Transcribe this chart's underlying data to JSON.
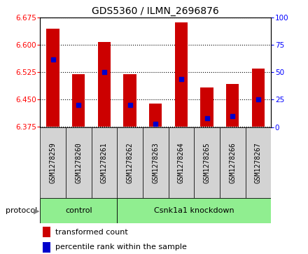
{
  "title": "GDS5360 / ILMN_2696876",
  "samples": [
    "GSM1278259",
    "GSM1278260",
    "GSM1278261",
    "GSM1278262",
    "GSM1278263",
    "GSM1278264",
    "GSM1278265",
    "GSM1278266",
    "GSM1278267"
  ],
  "transformed_counts": [
    6.645,
    6.52,
    6.608,
    6.52,
    6.44,
    6.663,
    6.483,
    6.493,
    6.535
  ],
  "percentile_ranks": [
    62,
    20,
    50,
    20,
    3,
    44,
    8,
    10,
    25
  ],
  "ylim_left": [
    6.375,
    6.675
  ],
  "ylim_right": [
    0,
    100
  ],
  "yticks_left": [
    6.375,
    6.45,
    6.525,
    6.6,
    6.675
  ],
  "yticks_right": [
    0,
    25,
    50,
    75,
    100
  ],
  "bar_color": "#cc0000",
  "blue_color": "#0000cc",
  "bar_width": 0.5,
  "group_ranges": [
    [
      0,
      3
    ],
    [
      3,
      9
    ]
  ],
  "group_labels": [
    "control",
    "Csnk1a1 knockdown"
  ],
  "group_color": "#90ee90",
  "sample_box_color": "#d3d3d3",
  "legend_items": [
    {
      "color": "#cc0000",
      "label": "transformed count"
    },
    {
      "color": "#0000cc",
      "label": "percentile rank within the sample"
    }
  ]
}
